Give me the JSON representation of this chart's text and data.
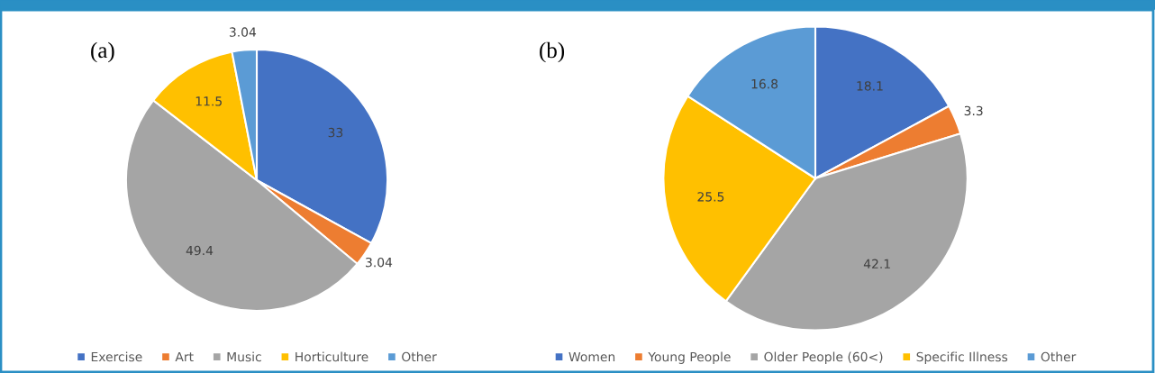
{
  "chart_data": [
    {
      "type": "pie",
      "title": "(a)",
      "categories": [
        "Exercise",
        "Art",
        "Music",
        "Horticulture",
        "Other"
      ],
      "values": [
        33,
        3.04,
        49.4,
        11.5,
        3.04
      ],
      "colors": [
        "#4472c4",
        "#ed7d31",
        "#a5a5a5",
        "#ffc000",
        "#5b9bd5"
      ],
      "data_labels": true,
      "legend": "bottom"
    },
    {
      "type": "pie",
      "title": "(b)",
      "categories": [
        "Women",
        "Young People",
        "Older People (60<)",
        "Specific Illness",
        "Other"
      ],
      "values": [
        18.1,
        3.3,
        42.1,
        25.5,
        16.8
      ],
      "colors": [
        "#4472c4",
        "#ed7d31",
        "#a5a5a5",
        "#ffc000",
        "#5b9bd5"
      ],
      "data_labels": true,
      "legend": "bottom"
    }
  ]
}
